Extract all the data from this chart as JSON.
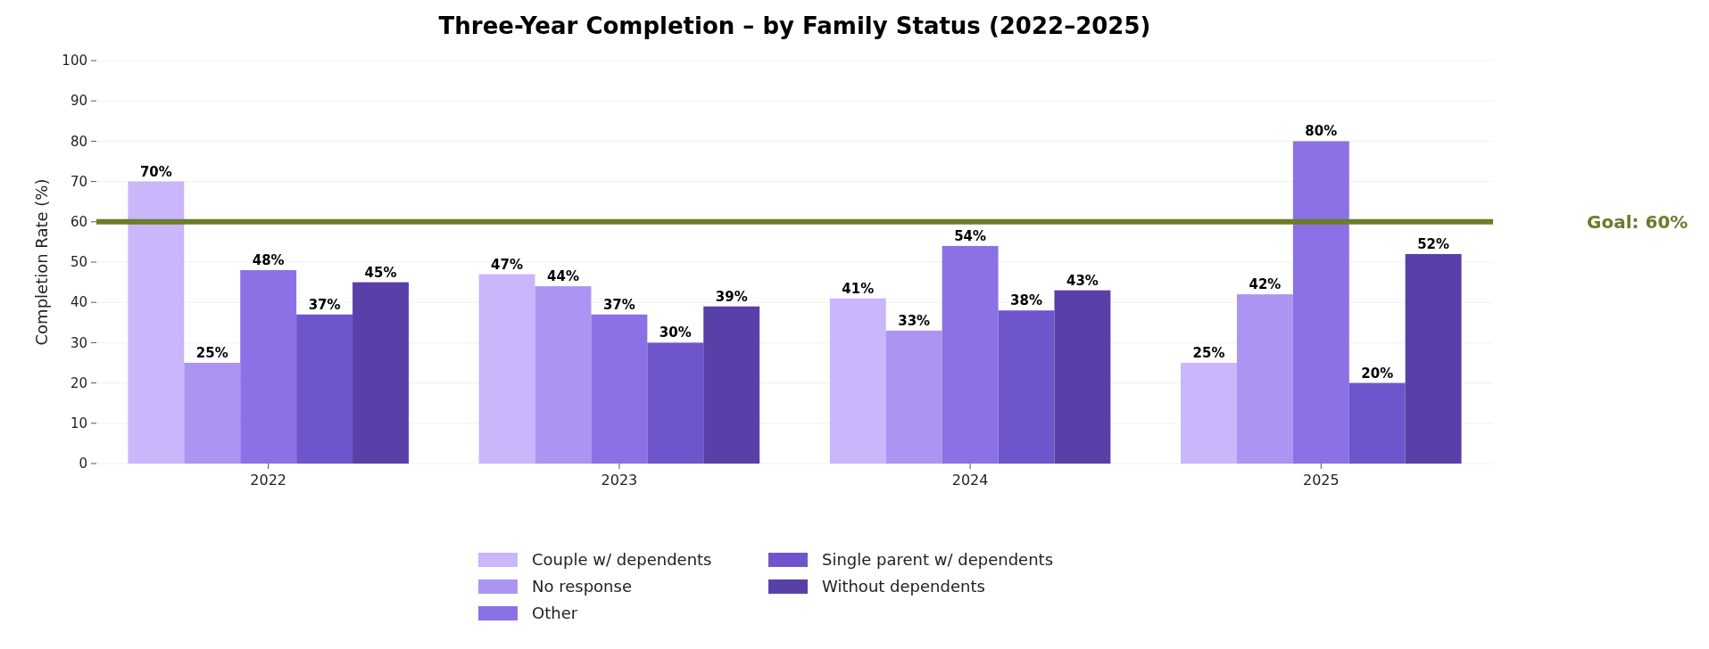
{
  "chart_data": {
    "type": "bar",
    "title": "Three-Year Completion – by Family Status (2022–2025)",
    "ylabel": "Completion Rate (%)",
    "categories": [
      "2022",
      "2023",
      "2024",
      "2025"
    ],
    "series": [
      {
        "name": "Couple w/ dependents",
        "color": "#c9b6fb",
        "values": [
          70,
          47,
          41,
          25
        ],
        "value_labels": [
          "70%",
          "47%",
          "41%",
          "25%"
        ]
      },
      {
        "name": "No response",
        "color": "#ab94f2",
        "values": [
          25,
          44,
          33,
          42
        ],
        "value_labels": [
          "25%",
          "44%",
          "33%",
          "42%"
        ]
      },
      {
        "name": "Other",
        "color": "#8c70e6",
        "values": [
          48,
          37,
          54,
          80
        ],
        "value_labels": [
          "48%",
          "37%",
          "54%",
          "80%"
        ]
      },
      {
        "name": "Single parent w/ dependents",
        "color": "#6e55cc",
        "values": [
          37,
          30,
          38,
          20
        ],
        "value_labels": [
          "37%",
          "30%",
          "38%",
          "20%"
        ]
      },
      {
        "name": "Without dependents",
        "color": "#5840a8",
        "values": [
          45,
          39,
          43,
          52
        ],
        "value_labels": [
          "45%",
          "39%",
          "43%",
          "52%"
        ]
      }
    ],
    "ylim": [
      0,
      100
    ],
    "yticks": [
      0,
      10,
      20,
      30,
      40,
      50,
      60,
      70,
      80,
      90,
      100
    ],
    "grid": "y",
    "legend": "bottom",
    "ref_lines": [
      {
        "axis": "y",
        "value": 60,
        "label": "Goal: 60%",
        "color": "#6b7c2a"
      }
    ]
  }
}
